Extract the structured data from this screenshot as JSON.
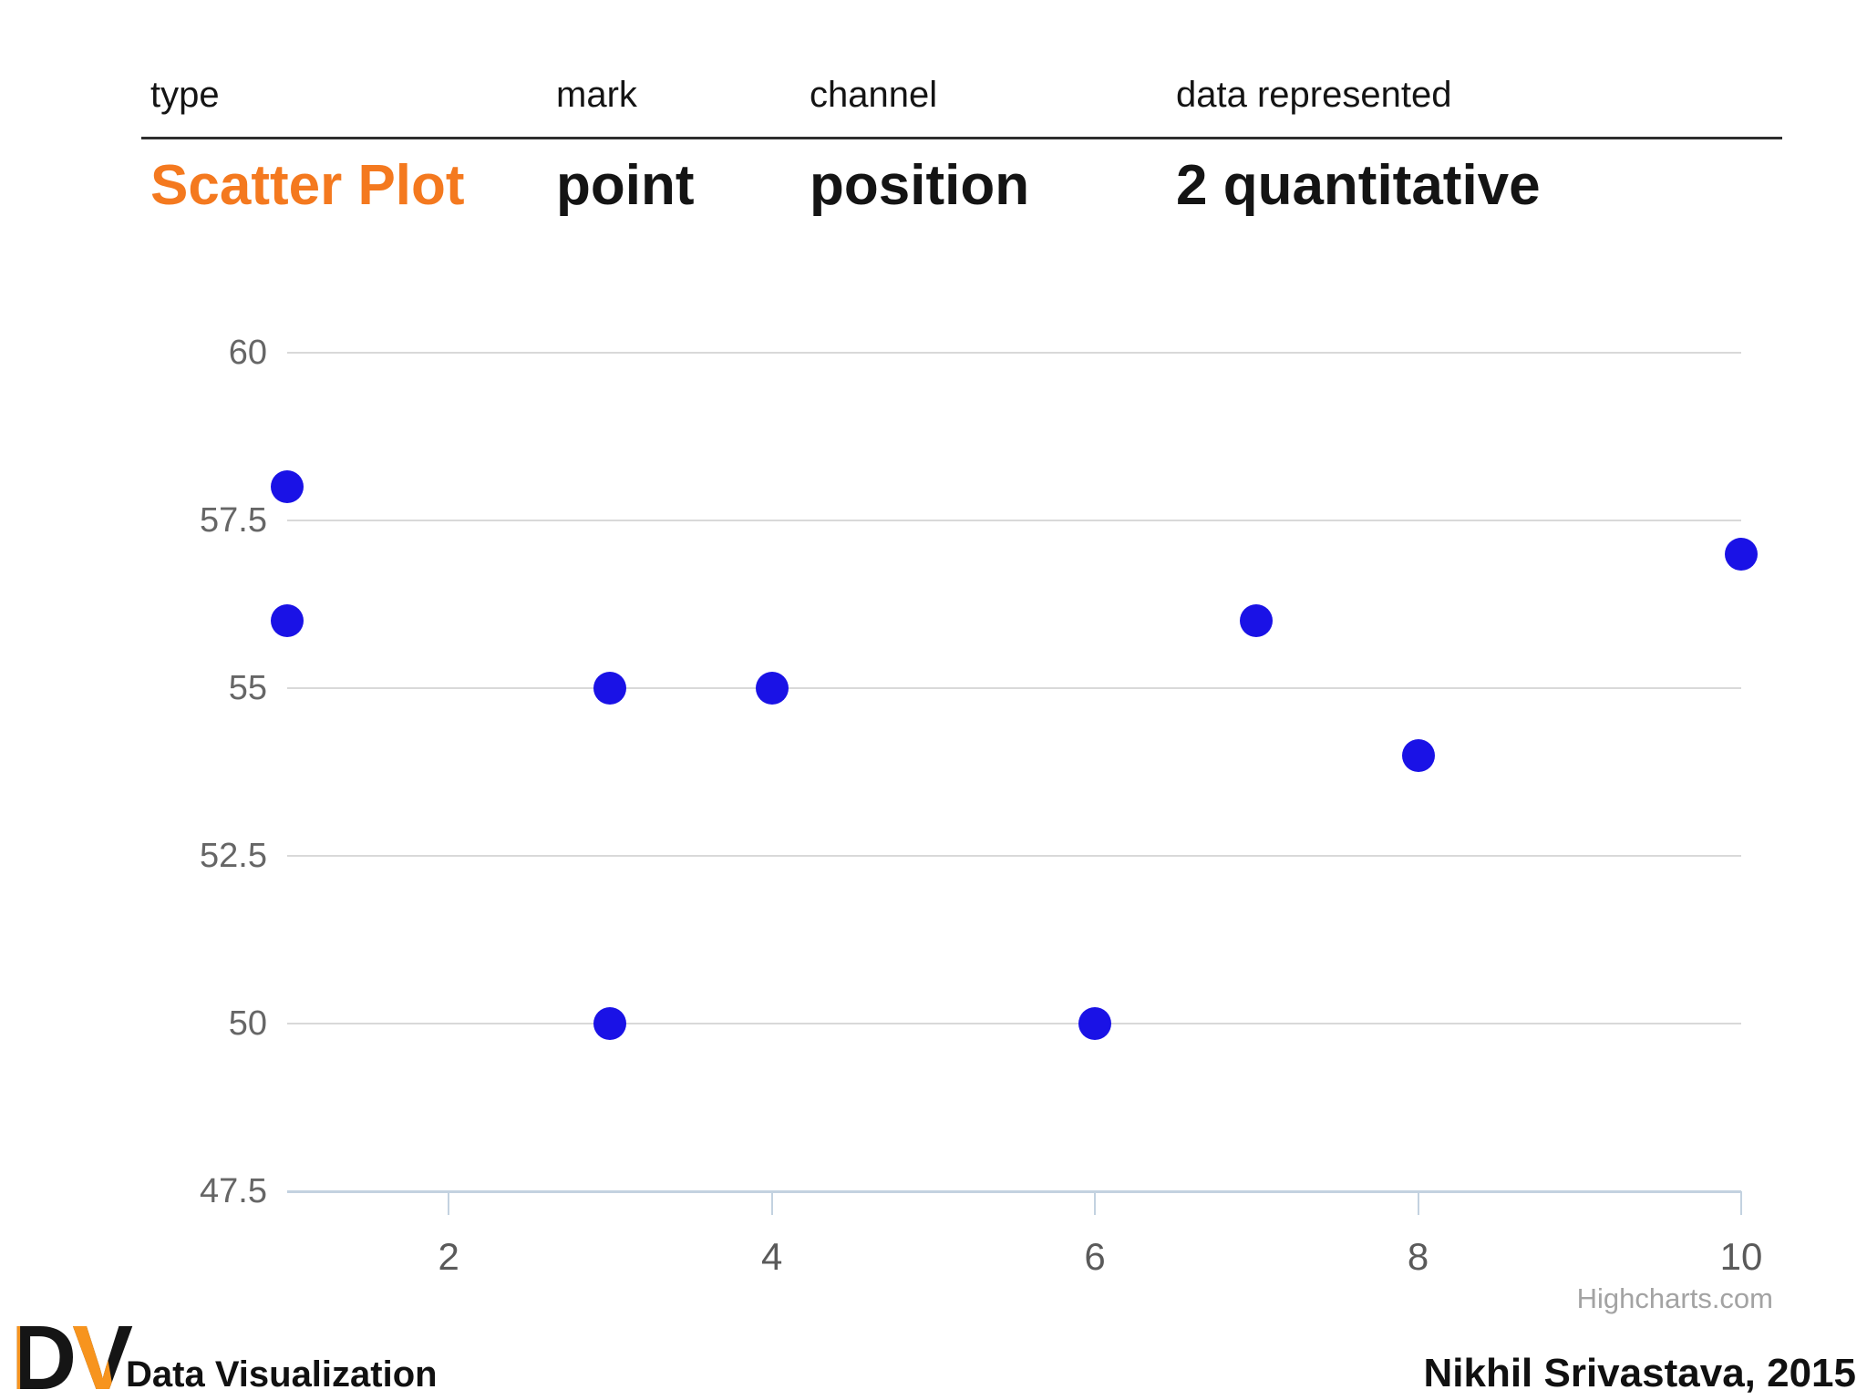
{
  "table": {
    "headers": [
      "type",
      "mark",
      "channel",
      "data represented"
    ],
    "row": [
      "Scatter Plot",
      "point",
      "position",
      "2 quantitative"
    ],
    "accent_color": "#F4791F"
  },
  "chart_data": {
    "type": "scatter",
    "points": [
      [
        1,
        58
      ],
      [
        1,
        56
      ],
      [
        3,
        55
      ],
      [
        3,
        50
      ],
      [
        4,
        55
      ],
      [
        6,
        50
      ],
      [
        7,
        56
      ],
      [
        8,
        54
      ],
      [
        10,
        57
      ]
    ],
    "xlim": [
      1,
      10
    ],
    "ylim": [
      47.5,
      60
    ],
    "xticks": [
      2,
      4,
      6,
      8,
      10
    ],
    "xtick_labels": [
      "2",
      "4",
      "6",
      "8",
      "10"
    ],
    "yticks": [
      60,
      57.5,
      55,
      52.5,
      50,
      47.5
    ],
    "ytick_labels": [
      "60",
      "57.5",
      "55",
      "52.5",
      "50",
      "47.5"
    ],
    "grid": true,
    "legend": false,
    "title": "",
    "xlabel": "",
    "ylabel": "",
    "marker_color": "#1a12e6",
    "gridline_color": "#d9d9d9",
    "axis_line_color": "#c3d2e0",
    "credit": "Highcharts.com"
  },
  "footer": {
    "logo_d": "D",
    "logo_v": "V",
    "brand": "Data Visualization",
    "credit": "Nikhil Srivastava, 2015"
  }
}
